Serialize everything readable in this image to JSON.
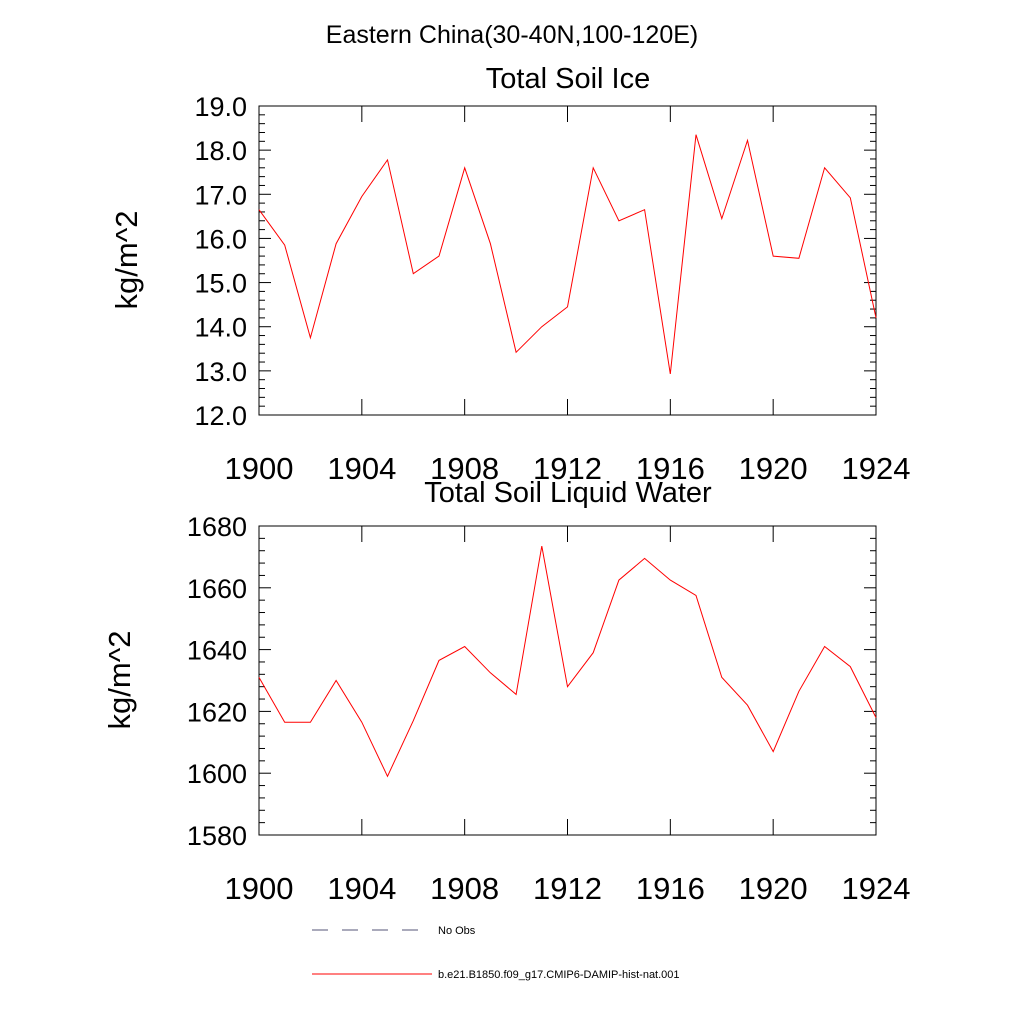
{
  "figure_title": "Eastern China(30-40N,100-120E)",
  "chart_data": [
    {
      "type": "line",
      "title": "Total Soil Ice",
      "ylabel": "kg/m^2",
      "xlabel": "",
      "xlim": [
        1900,
        1924
      ],
      "ylim": [
        12.0,
        19.0
      ],
      "x_ticks": [
        1900,
        1904,
        1908,
        1912,
        1916,
        1920,
        1924
      ],
      "y_ticks": [
        "12.0",
        "13.0",
        "14.0",
        "15.0",
        "16.0",
        "17.0",
        "18.0",
        "19.0"
      ],
      "grid": false,
      "x": [
        1900,
        1901,
        1902,
        1903,
        1904,
        1905,
        1906,
        1907,
        1908,
        1909,
        1910,
        1911,
        1912,
        1913,
        1914,
        1915,
        1916,
        1917,
        1918,
        1919,
        1920,
        1921,
        1922,
        1923,
        1924
      ],
      "series": [
        {
          "name": "b.e21.B1850.f09_g17.CMIP6-DAMIP-hist-nat.001",
          "color": "#ff0000",
          "values": [
            16.65,
            15.85,
            13.75,
            15.88,
            16.95,
            17.78,
            15.2,
            15.6,
            17.6,
            15.88,
            13.42,
            14.0,
            14.45,
            17.6,
            16.4,
            16.65,
            12.93,
            18.35,
            16.45,
            18.22,
            15.6,
            15.55,
            17.6,
            16.92,
            14.2
          ]
        }
      ]
    },
    {
      "type": "line",
      "title": "Total Soil Liquid Water",
      "ylabel": "kg/m^2",
      "xlabel": "",
      "xlim": [
        1900,
        1924
      ],
      "ylim": [
        1580,
        1680
      ],
      "x_ticks": [
        1900,
        1904,
        1908,
        1912,
        1916,
        1920,
        1924
      ],
      "y_ticks": [
        "1580",
        "1600",
        "1620",
        "1640",
        "1660",
        "1680"
      ],
      "grid": false,
      "x": [
        1900,
        1901,
        1902,
        1903,
        1904,
        1905,
        1906,
        1907,
        1908,
        1909,
        1910,
        1911,
        1912,
        1913,
        1914,
        1915,
        1916,
        1917,
        1918,
        1919,
        1920,
        1921,
        1922,
        1923,
        1924
      ],
      "series": [
        {
          "name": "b.e21.B1850.f09_g17.CMIP6-DAMIP-hist-nat.001",
          "color": "#ff0000",
          "values": [
            1631,
            1616.5,
            1616.5,
            1630,
            1616.5,
            1599,
            1617,
            1636.5,
            1641,
            1632.5,
            1625.5,
            1673.5,
            1628,
            1639,
            1662.5,
            1669.5,
            1662.5,
            1657.5,
            1631,
            1622,
            1607,
            1626.5,
            1641,
            1634.5,
            1618
          ]
        }
      ]
    }
  ],
  "legend": {
    "placement": "bottom-center",
    "entries": [
      {
        "label": "No Obs",
        "color": "#555577",
        "style": "dashed"
      },
      {
        "label": "b.e21.B1850.f09_g17.CMIP6-DAMIP-hist-nat.001",
        "color": "#ff0000",
        "style": "solid"
      }
    ]
  }
}
